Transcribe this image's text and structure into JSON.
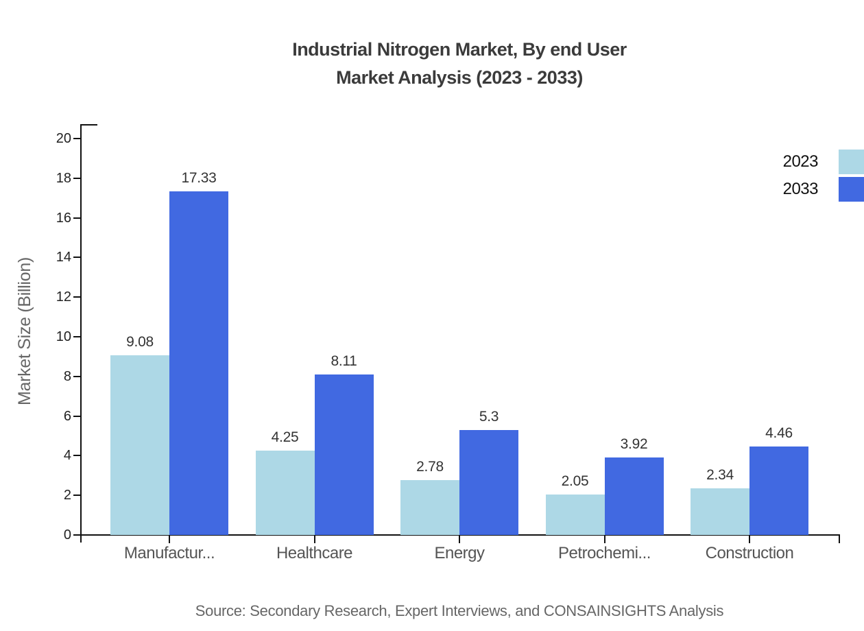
{
  "chart_data": {
    "type": "bar",
    "title": "Industrial Nitrogen Market, By end User",
    "subtitle": "Market Analysis (2023 - 2033)",
    "ylabel": "Market Size (Billion)",
    "xlabel": "",
    "categories": [
      "Manufactur...",
      "Healthcare",
      "Energy",
      "Petrochemi...",
      "Construction"
    ],
    "series": [
      {
        "name": "2023",
        "color": "#ADD8E6",
        "values": [
          9.08,
          4.25,
          2.78,
          2.05,
          2.34
        ]
      },
      {
        "name": "2033",
        "color": "#4169E1",
        "values": [
          17.33,
          8.11,
          5.3,
          3.92,
          4.46
        ]
      }
    ],
    "value_labels": [
      [
        "9.08",
        "4.25",
        "2.78",
        "2.05",
        "2.34"
      ],
      [
        "17.33",
        "8.11",
        "5.3",
        "3.92",
        "4.46"
      ]
    ],
    "ylim": [
      0,
      20
    ],
    "ytick_step": 2,
    "grid": false,
    "legend_position": "top-right"
  },
  "source_note": "Source: Secondary Research, Expert Interviews, and CONSAINSIGHTS Analysis",
  "colors": {
    "title": "#3b3b3b",
    "axis": "#111111",
    "ytick_label": "#222222",
    "category_label": "#555555",
    "value_label": "#333333",
    "ylabel": "#666666",
    "source": "#666666",
    "background": "#ffffff"
  }
}
